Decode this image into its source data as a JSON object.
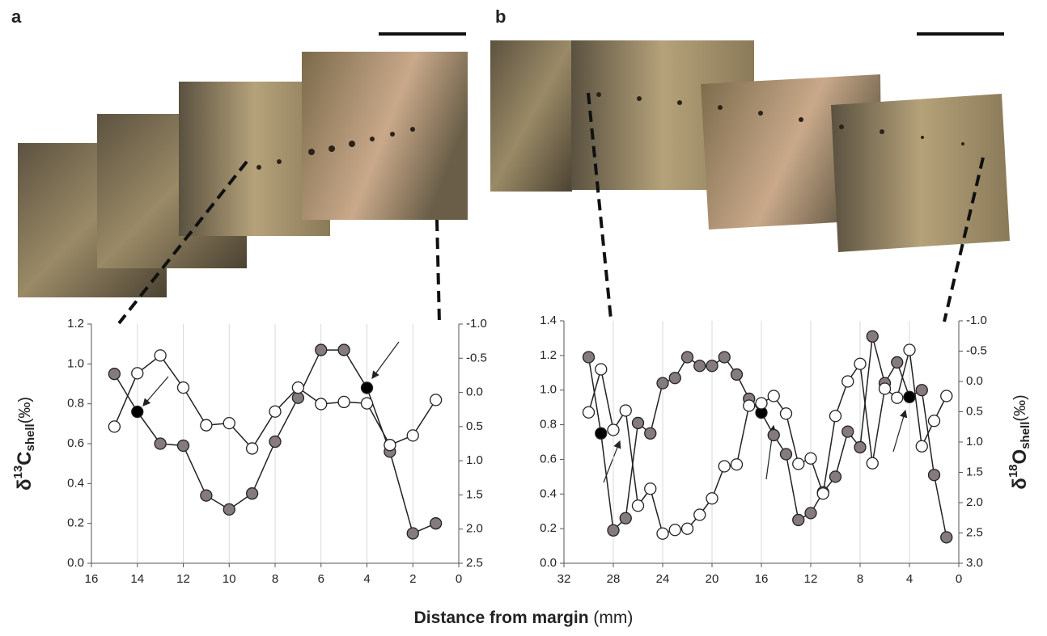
{
  "panels": [
    "a",
    "b"
  ],
  "xlabel": {
    "main": "Distance from margin",
    "unit": "(mm)"
  },
  "chart_data": [
    {
      "type": "line",
      "ylabel": {
        "symbol": "δ",
        "sup": "13",
        "main": "C",
        "sub": "shell",
        "unit": "(‰)"
      },
      "x": [
        15,
        14,
        13,
        12,
        11,
        10,
        9,
        8,
        7,
        6,
        5,
        4,
        3,
        2,
        1
      ],
      "xlim": [
        16,
        0
      ],
      "xticks": [
        16,
        14,
        12,
        10,
        8,
        6,
        4,
        2,
        0
      ],
      "xgrid": true,
      "ylim": [
        0,
        1.2
      ],
      "yticks": [
        {
          "value": 0,
          "label": "0.0"
        },
        {
          "value": 0.2,
          "label": "0.2"
        },
        {
          "value": 0.4,
          "label": "0.4"
        },
        {
          "value": 0.6,
          "label": "0.6"
        },
        {
          "value": 0.8,
          "label": "0.8"
        },
        {
          "value": 1,
          "label": "1.0"
        },
        {
          "value": 1.2,
          "label": "1.2"
        }
      ],
      "y2lim": [
        -1,
        2.5
      ],
      "y2_inverted": true,
      "y2ticks": [
        {
          "value": -1,
          "label": "-1.0"
        },
        {
          "value": -0.5,
          "label": "-0.5"
        },
        {
          "value": 0,
          "label": "0.0"
        },
        {
          "value": 0.5,
          "label": "0.5"
        },
        {
          "value": 1,
          "label": "1.0"
        },
        {
          "value": 1.5,
          "label": "1.5"
        },
        {
          "value": 2,
          "label": "2.0"
        },
        {
          "value": 2.5,
          "label": "2.5"
        }
      ],
      "series": [
        {
          "color": "#857a7c",
          "axis": "y",
          "values": [
            0.95,
            0.76,
            0.6,
            0.59,
            0.34,
            0.27,
            0.35,
            0.61,
            0.83,
            1.07,
            1.07,
            0.88,
            0.56,
            0.15,
            0.2
          ],
          "point_colors": [
            "#857a7c",
            "#000000",
            "#857a7c",
            "#857a7c",
            "#857a7c",
            "#857a7c",
            "#857a7c",
            "#857a7c",
            "#857a7c",
            "#857a7c",
            "#857a7c",
            "#000000",
            "#857a7c",
            "#857a7c",
            "#857a7c"
          ]
        },
        {
          "color": "#ffffff",
          "axis": "y2",
          "values": [
            0.5,
            -0.28,
            -0.54,
            -0.07,
            0.48,
            0.45,
            0.82,
            0.28,
            -0.07,
            0.17,
            0.14,
            0.16,
            0.77,
            0.63,
            0.11
          ]
        }
      ]
    },
    {
      "type": "line",
      "y2label": {
        "symbol": "δ",
        "sup": "18",
        "main": "O",
        "sub": "shell",
        "unit": "(‰)"
      },
      "x": [
        30,
        29,
        28,
        27,
        26,
        25,
        24,
        23,
        22,
        21,
        20,
        19,
        18,
        17,
        16,
        15,
        14,
        13,
        12,
        11,
        10,
        9,
        8,
        7,
        6,
        5,
        4,
        3,
        2,
        1
      ],
      "xlim": [
        32,
        0
      ],
      "xticks": [
        32,
        28,
        24,
        20,
        16,
        12,
        8,
        4,
        0
      ],
      "xgrid": true,
      "ylim": [
        0,
        1.4
      ],
      "yticks": [
        {
          "value": 0,
          "label": "0.0"
        },
        {
          "value": 0.2,
          "label": "0.2"
        },
        {
          "value": 0.4,
          "label": "0.4"
        },
        {
          "value": 0.6,
          "label": "0.6"
        },
        {
          "value": 0.8,
          "label": "0.8"
        },
        {
          "value": 1,
          "label": "1.0"
        },
        {
          "value": 1.2,
          "label": "1.2"
        },
        {
          "value": 1.4,
          "label": "1.4"
        }
      ],
      "y2lim": [
        -1,
        3
      ],
      "y2_inverted": true,
      "y2ticks": [
        {
          "value": -1,
          "label": "-1.0"
        },
        {
          "value": -0.5,
          "label": "-0.5"
        },
        {
          "value": 0,
          "label": "0.0"
        },
        {
          "value": 0.5,
          "label": "0.5"
        },
        {
          "value": 1,
          "label": "1.0"
        },
        {
          "value": 1.5,
          "label": "1.5"
        },
        {
          "value": 2,
          "label": "2.0"
        },
        {
          "value": 2.5,
          "label": "2.5"
        },
        {
          "value": 3,
          "label": "3.0"
        }
      ],
      "series": [
        {
          "color": "#857a7c",
          "axis": "y",
          "values": [
            1.19,
            0.75,
            0.19,
            0.26,
            0.81,
            0.75,
            1.04,
            1.07,
            1.19,
            1.14,
            1.14,
            1.19,
            1.09,
            0.95,
            0.87,
            0.74,
            0.63,
            0.25,
            0.29,
            0.41,
            0.5,
            0.76,
            0.67,
            1.31,
            1.04,
            1.16,
            0.96,
            1.0,
            0.51,
            0.15
          ],
          "point_colors": [
            "#857a7c",
            "#000000",
            "#857a7c",
            "#857a7c",
            "#857a7c",
            "#857a7c",
            "#857a7c",
            "#857a7c",
            "#857a7c",
            "#857a7c",
            "#857a7c",
            "#857a7c",
            "#857a7c",
            "#857a7c",
            "#000000",
            "#857a7c",
            "#857a7c",
            "#857a7c",
            "#857a7c",
            "#857a7c",
            "#857a7c",
            "#857a7c",
            "#857a7c",
            "#857a7c",
            "#857a7c",
            "#857a7c",
            "#000000",
            "#857a7c",
            "#857a7c",
            "#857a7c"
          ]
        },
        {
          "color": "#ffffff",
          "axis": "y2",
          "values": [
            0.51,
            -0.2,
            0.8,
            0.48,
            2.05,
            1.77,
            2.51,
            2.45,
            2.43,
            2.2,
            1.93,
            1.4,
            1.37,
            0.4,
            0.36,
            0.24,
            0.53,
            1.36,
            1.27,
            1.85,
            0.57,
            0.0,
            -0.29,
            1.35,
            0.12,
            0.27,
            -0.52,
            1.07,
            0.65,
            0.24
          ]
        }
      ]
    }
  ]
}
